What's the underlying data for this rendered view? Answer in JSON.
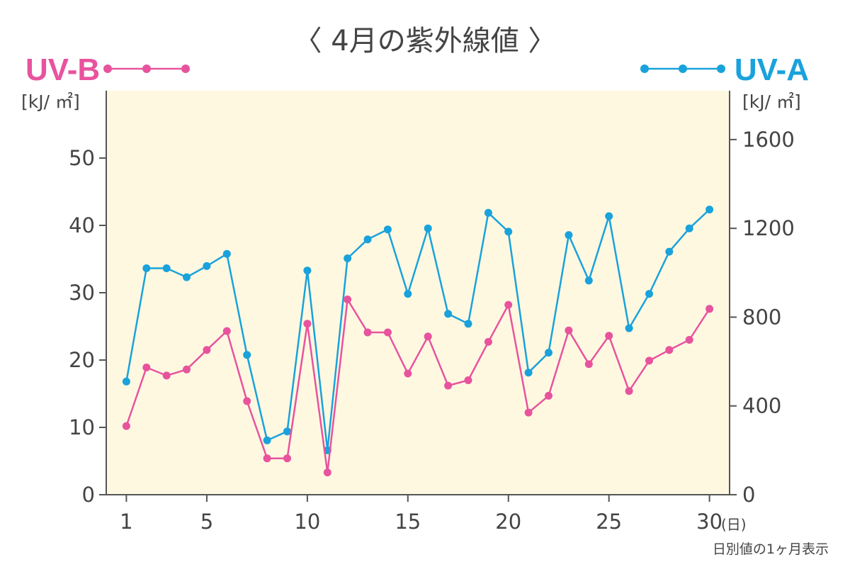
{
  "colors": {
    "uvb": "#e8539e",
    "uva": "#19a2db",
    "plot_bg": "#fff8e1",
    "axis": "#555555",
    "text": "#444444"
  },
  "chart_data": {
    "type": "line",
    "title": "〈 4月の紫外線値 〉",
    "note": "日別値の1ヶ月表示",
    "x": [
      1,
      2,
      3,
      4,
      5,
      6,
      7,
      8,
      9,
      10,
      11,
      12,
      13,
      14,
      15,
      16,
      17,
      18,
      19,
      20,
      21,
      22,
      23,
      24,
      25,
      26,
      27,
      28,
      29,
      30
    ],
    "xaxis": {
      "ticks": [
        1,
        5,
        10,
        15,
        20,
        25,
        30
      ],
      "tick_labels": [
        "1",
        "5",
        "10",
        "15",
        "20",
        "25",
        "30"
      ],
      "unit": "(日)",
      "xlim": [
        0,
        31
      ]
    },
    "left_axis": {
      "unit": "[kJ/ ㎡]",
      "ylim": [
        0,
        60
      ],
      "ticks": [
        0,
        10,
        20,
        30,
        40,
        50
      ],
      "tick_labels": [
        "0",
        "10",
        "20",
        "30",
        "40",
        "50"
      ]
    },
    "right_axis": {
      "unit": "[kJ/ ㎡]",
      "ylim": [
        0,
        1820
      ],
      "ticks": [
        0,
        400,
        800,
        1200,
        1600
      ],
      "tick_labels": [
        "0",
        "400",
        "800",
        "1200",
        "1600"
      ]
    },
    "grid": false,
    "legend_placement": "top",
    "series": [
      {
        "name": "UV-B",
        "axis": "left",
        "color": "#e8539e",
        "values": [
          10.2,
          18.9,
          17.7,
          18.6,
          21.5,
          24.3,
          13.9,
          5.4,
          5.4,
          25.4,
          3.3,
          29.0,
          24.1,
          24.1,
          18.0,
          23.5,
          16.2,
          17.0,
          22.7,
          28.2,
          12.2,
          14.7,
          24.4,
          19.4,
          23.6,
          15.4,
          19.9,
          21.5,
          23.0,
          27.6
        ]
      },
      {
        "name": "UV-A",
        "axis": "right",
        "color": "#19a2db",
        "values": [
          510,
          1020,
          1020,
          980,
          1030,
          1085,
          630,
          245,
          285,
          1010,
          200,
          1065,
          1150,
          1195,
          905,
          1200,
          815,
          770,
          1270,
          1185,
          550,
          640,
          1170,
          965,
          1255,
          750,
          905,
          1095,
          1200,
          1285
        ]
      }
    ]
  }
}
